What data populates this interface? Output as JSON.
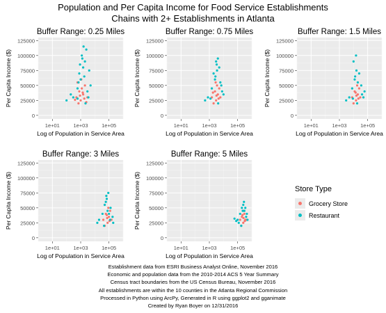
{
  "figure": {
    "title_line1": "Population and Per Capita Income for Food Service Establishments",
    "title_line2": "Chains with 2+ Establishments in Atlanta"
  },
  "axes": {
    "xlabel": "Log of Population in Service Area",
    "ylabel": "Per Capita Income ($)",
    "x_ticks": [
      "1e+01",
      "1e+03",
      "1e+05"
    ],
    "y_ticks": [
      "0",
      "25000",
      "50000",
      "75000",
      "100000",
      "125000"
    ]
  },
  "legend": {
    "title": "Store Type",
    "items": [
      {
        "label": "Grocery Store",
        "color": "#F8766D"
      },
      {
        "label": "Restaurant",
        "color": "#00BFC4"
      }
    ]
  },
  "caption": [
    "Establishment data from ESRI Business Analyst Online, November 2016",
    "Economic and population data from the 2010-2014 ACS 5 Year Summary",
    "Census tract boundaries from the US Census Bureau, November 2016",
    "All establishments are within the 10 counties in the Atlanta Regional Commission",
    "Processed in Python using ArcPy, Generated in R using ggplot2 and gganimate",
    "Created by Ryan Boyer on 12/31/2016"
  ],
  "chart_data": {
    "type": "scatter",
    "x_scale": "log10",
    "xlim": [
      1,
      1000000
    ],
    "ylim": [
      -6000,
      130000
    ],
    "grid": true,
    "legend_placement": "right",
    "panels": [
      {
        "title": "Buffer Range: 0.25 Miles",
        "series": [
          {
            "name": "Grocery Store",
            "points": [
              [
                500,
                30000
              ],
              [
                800,
                40000
              ],
              [
                1000,
                25000
              ],
              [
                1500,
                35000
              ],
              [
                2000,
                50000
              ],
              [
                700,
                20000
              ],
              [
                1200,
                45000
              ],
              [
                3000,
                30000
              ],
              [
                600,
                55000
              ],
              [
                1800,
                28000
              ],
              [
                900,
                33000
              ],
              [
                2500,
                22000
              ],
              [
                400,
                26000
              ],
              [
                1100,
                60000
              ],
              [
                1400,
                38000
              ]
            ]
          },
          {
            "name": "Restaurant",
            "points": [
              [
                300,
                30000
              ],
              [
                600,
                45000
              ],
              [
                1000,
                60000
              ],
              [
                1500,
                80000
              ],
              [
                2000,
                90000
              ],
              [
                3000,
                40000
              ],
              [
                5000,
                50000
              ],
              [
                800,
                70000
              ],
              [
                1200,
                100000
              ],
              [
                2500,
                110000
              ],
              [
                100,
                25000
              ],
              [
                200,
                35000
              ],
              [
                4000,
                75000
              ],
              [
                700,
                55000
              ],
              [
                1800,
                65000
              ],
              [
                900,
                85000
              ],
              [
                3500,
                30000
              ],
              [
                1300,
                95000
              ],
              [
                2200,
                20000
              ],
              [
                600,
                28000
              ],
              [
                1600,
                115000
              ]
            ]
          }
        ]
      },
      {
        "title": "Buffer Range: 0.75 Miles",
        "series": [
          {
            "name": "Grocery Store",
            "points": [
              [
                1500,
                30000
              ],
              [
                2500,
                40000
              ],
              [
                3000,
                25000
              ],
              [
                4000,
                35000
              ],
              [
                5000,
                45000
              ],
              [
                2000,
                20000
              ],
              [
                3500,
                50000
              ],
              [
                6000,
                30000
              ],
              [
                2800,
                55000
              ],
              [
                4500,
                28000
              ],
              [
                3200,
                33000
              ],
              [
                1800,
                38000
              ]
            ]
          },
          {
            "name": "Restaurant",
            "points": [
              [
                800,
                30000
              ],
              [
                1500,
                45000
              ],
              [
                2500,
                60000
              ],
              [
                3500,
                75000
              ],
              [
                5000,
                80000
              ],
              [
                8000,
                40000
              ],
              [
                10000,
                35000
              ],
              [
                2000,
                70000
              ],
              [
                3000,
                90000
              ],
              [
                4000,
                95000
              ],
              [
                500,
                25000
              ],
              [
                6000,
                55000
              ],
              [
                1200,
                28000
              ],
              [
                7000,
                50000
              ],
              [
                2700,
                65000
              ],
              [
                3300,
                85000
              ],
              [
                4200,
                20000
              ]
            ]
          }
        ]
      },
      {
        "title": "Buffer Range: 1.5 Miles",
        "series": [
          {
            "name": "Grocery Store",
            "points": [
              [
                8000,
                30000
              ],
              [
                12000,
                40000
              ],
              [
                15000,
                25000
              ],
              [
                20000,
                35000
              ],
              [
                25000,
                45000
              ],
              [
                10000,
                20000
              ],
              [
                18000,
                50000
              ],
              [
                30000,
                30000
              ],
              [
                14000,
                38000
              ],
              [
                22000,
                28000
              ],
              [
                16000,
                33000
              ]
            ]
          },
          {
            "name": "Restaurant",
            "points": [
              [
                5000,
                30000
              ],
              [
                8000,
                45000
              ],
              [
                12000,
                60000
              ],
              [
                16000,
                75000
              ],
              [
                25000,
                70000
              ],
              [
                40000,
                35000
              ],
              [
                60000,
                40000
              ],
              [
                10000,
                90000
              ],
              [
                15000,
                100000
              ],
              [
                3000,
                25000
              ],
              [
                20000,
                55000
              ],
              [
                35000,
                50000
              ],
              [
                9000,
                28000
              ],
              [
                13000,
                65000
              ],
              [
                50000,
                30000
              ],
              [
                18000,
                20000
              ]
            ]
          }
        ]
      },
      {
        "title": "Buffer Range: 3 Miles",
        "series": [
          {
            "name": "Grocery Store",
            "points": [
              [
                40000,
                30000
              ],
              [
                60000,
                40000
              ],
              [
                80000,
                25000
              ],
              [
                100000,
                35000
              ],
              [
                120000,
                45000
              ],
              [
                50000,
                20000
              ],
              [
                90000,
                50000
              ],
              [
                150000,
                30000
              ],
              [
                70000,
                38000
              ],
              [
                110000,
                28000
              ],
              [
                75000,
                33000
              ]
            ]
          },
          {
            "name": "Restaurant",
            "points": [
              [
                20000,
                30000
              ],
              [
                35000,
                40000
              ],
              [
                50000,
                55000
              ],
              [
                70000,
                65000
              ],
              [
                90000,
                75000
              ],
              [
                130000,
                50000
              ],
              [
                180000,
                35000
              ],
              [
                60000,
                60000
              ],
              [
                80000,
                45000
              ],
              [
                15000,
                25000
              ],
              [
                100000,
                40000
              ],
              [
                45000,
                20000
              ],
              [
                120000,
                30000
              ],
              [
                200000,
                25000
              ],
              [
                65000,
                70000
              ]
            ]
          }
        ]
      },
      {
        "title": "Buffer Range: 5 Miles",
        "series": [
          {
            "name": "Grocery Store",
            "points": [
              [
                150000,
                30000
              ],
              [
                200000,
                35000
              ],
              [
                250000,
                25000
              ],
              [
                300000,
                40000
              ],
              [
                350000,
                30000
              ],
              [
                180000,
                20000
              ],
              [
                280000,
                45000
              ],
              [
                400000,
                30000
              ],
              [
                220000,
                38000
              ],
              [
                320000,
                28000
              ],
              [
                260000,
                33000
              ]
            ]
          },
          {
            "name": "Restaurant",
            "points": [
              [
                100000,
                30000
              ],
              [
                150000,
                40000
              ],
              [
                200000,
                50000
              ],
              [
                250000,
                55000
              ],
              [
                300000,
                45000
              ],
              [
                400000,
                35000
              ],
              [
                500000,
                30000
              ],
              [
                120000,
                25000
              ],
              [
                350000,
                50000
              ],
              [
                80000,
                28000
              ],
              [
                280000,
                60000
              ],
              [
                450000,
                40000
              ],
              [
                180000,
                20000
              ],
              [
                230000,
                45000
              ],
              [
                60000,
                32000
              ]
            ]
          }
        ]
      }
    ]
  }
}
